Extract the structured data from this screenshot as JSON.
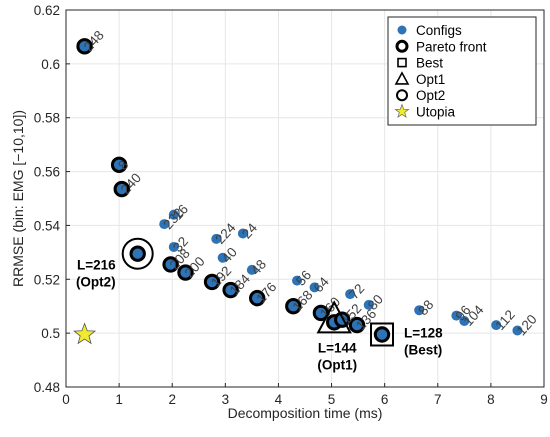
{
  "chart_data": {
    "type": "scatter",
    "xlabel": "Decomposition time (ms)",
    "ylabel": "RRMSE (bin: EMG [−10,10])",
    "xlim": [
      0,
      9
    ],
    "ylim": [
      0.48,
      0.62
    ],
    "xticks": [
      "0",
      "1",
      "2",
      "3",
      "4",
      "5",
      "6",
      "7",
      "8",
      "9"
    ],
    "yticks": [
      "0.48",
      "0.5",
      "0.52",
      "0.54",
      "0.56",
      "0.58",
      "0.6",
      "0.62"
    ],
    "grid": true,
    "legend_position": "top-right",
    "colors": {
      "configs": "#2d73b5",
      "utopia": "#f2ea2c"
    },
    "legend": [
      {
        "marker": "configs",
        "label": "Configs"
      },
      {
        "marker": "pareto",
        "label": "Pareto front"
      },
      {
        "marker": "best",
        "label": "Best"
      },
      {
        "marker": "opt1",
        "label": "Opt1"
      },
      {
        "marker": "opt2",
        "label": "Opt2"
      },
      {
        "marker": "utopia",
        "label": "Utopia"
      }
    ],
    "configs": [
      {
        "x": 0.35,
        "y": 0.6065,
        "label": "248",
        "pareto": true
      },
      {
        "x": 1.0,
        "y": 0.5625,
        "label": "8",
        "pareto": true
      },
      {
        "x": 1.05,
        "y": 0.5535,
        "label": "240",
        "pareto": true
      },
      {
        "x": 1.35,
        "y": 0.5295,
        "label": "",
        "pareto": true
      },
      {
        "x": 1.85,
        "y": 0.5405,
        "label": "232",
        "pareto": false
      },
      {
        "x": 2.03,
        "y": 0.544,
        "label": "16",
        "pareto": false
      },
      {
        "x": 2.03,
        "y": 0.532,
        "label": "32",
        "pareto": false
      },
      {
        "x": 1.97,
        "y": 0.5255,
        "label": "208",
        "pareto": true
      },
      {
        "x": 2.25,
        "y": 0.5225,
        "label": "200",
        "pareto": true
      },
      {
        "x": 2.83,
        "y": 0.535,
        "label": "224",
        "pareto": false
      },
      {
        "x": 2.95,
        "y": 0.528,
        "label": "40",
        "pareto": false
      },
      {
        "x": 3.33,
        "y": 0.537,
        "label": "24",
        "pareto": false
      },
      {
        "x": 2.75,
        "y": 0.519,
        "label": "192",
        "pareto": true
      },
      {
        "x": 3.1,
        "y": 0.516,
        "label": "184",
        "pareto": true
      },
      {
        "x": 3.5,
        "y": 0.5235,
        "label": "48",
        "pareto": false
      },
      {
        "x": 3.6,
        "y": 0.513,
        "label": "176",
        "pareto": true
      },
      {
        "x": 4.35,
        "y": 0.5195,
        "label": "56",
        "pareto": false
      },
      {
        "x": 4.68,
        "y": 0.517,
        "label": "64",
        "pareto": false
      },
      {
        "x": 4.28,
        "y": 0.51,
        "label": "168",
        "pareto": true
      },
      {
        "x": 4.8,
        "y": 0.5075,
        "label": "160",
        "pareto": true
      },
      {
        "x": 5.05,
        "y": 0.504,
        "label": "",
        "pareto": true
      },
      {
        "x": 5.35,
        "y": 0.5145,
        "label": "72",
        "pareto": false
      },
      {
        "x": 5.2,
        "y": 0.505,
        "label": "152",
        "pareto": true
      },
      {
        "x": 5.48,
        "y": 0.503,
        "label": "136",
        "pareto": true
      },
      {
        "x": 5.7,
        "y": 0.5105,
        "label": "80",
        "pareto": false
      },
      {
        "x": 5.95,
        "y": 0.4995,
        "label": "",
        "pareto": true
      },
      {
        "x": 6.65,
        "y": 0.5085,
        "label": "88",
        "pareto": false
      },
      {
        "x": 7.35,
        "y": 0.5065,
        "label": "96",
        "pareto": false
      },
      {
        "x": 7.5,
        "y": 0.5045,
        "label": "104",
        "pareto": false
      },
      {
        "x": 8.1,
        "y": 0.503,
        "label": "112",
        "pareto": false
      },
      {
        "x": 8.5,
        "y": 0.501,
        "label": "120",
        "pareto": false
      }
    ],
    "best": {
      "x": 5.95,
      "y": 0.4995,
      "label": "L=128",
      "sublabel": "(Best)"
    },
    "opt1": {
      "x": 5.05,
      "y": 0.504,
      "label": "L=144",
      "sublabel": "(Opt1)"
    },
    "opt2": {
      "x": 1.35,
      "y": 0.5295,
      "label": "L=216",
      "sublabel": "(Opt2)"
    },
    "utopia": {
      "x": 0.35,
      "y": 0.4995
    }
  }
}
